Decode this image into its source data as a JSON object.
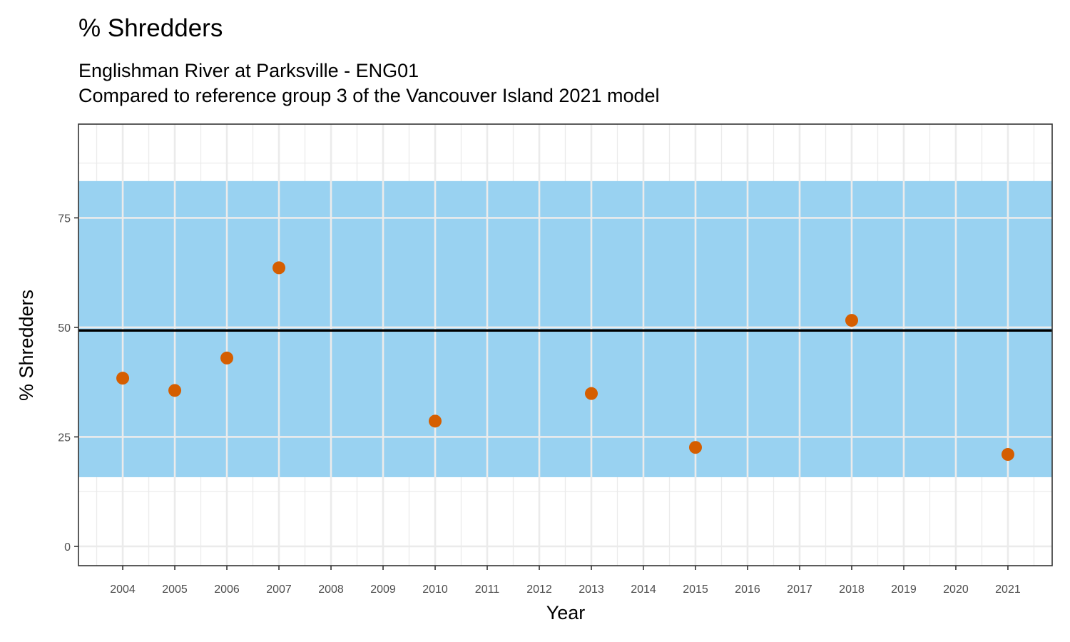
{
  "chart_data": {
    "type": "scatter",
    "title": "% Shredders",
    "subtitle_lines": [
      "Englishman River at Parksville - ENG01",
      "Compared to reference group 3 of the Vancouver Island 2021 model"
    ],
    "xlabel": "Year",
    "ylabel": "% Shredders",
    "x_ticks": [
      2004,
      2005,
      2006,
      2007,
      2008,
      2009,
      2010,
      2011,
      2012,
      2013,
      2014,
      2015,
      2016,
      2017,
      2018,
      2019,
      2020,
      2021
    ],
    "y_ticks": [
      0,
      25,
      50,
      75
    ],
    "xlim": [
      2003.15,
      2021.85
    ],
    "ylim": [
      -4.4,
      96.4
    ],
    "grid": true,
    "reference_band": {
      "low": 15.8,
      "high": 83.4,
      "color": "#99d2f1"
    },
    "reference_line": {
      "value": 49.3,
      "color": "#000000"
    },
    "point_color": "#d55e00",
    "points": [
      {
        "x": 2004,
        "y": 38.4
      },
      {
        "x": 2005,
        "y": 35.6
      },
      {
        "x": 2006,
        "y": 43.0
      },
      {
        "x": 2007,
        "y": 63.6
      },
      {
        "x": 2010,
        "y": 28.6
      },
      {
        "x": 2013,
        "y": 34.9
      },
      {
        "x": 2015,
        "y": 22.6
      },
      {
        "x": 2018,
        "y": 51.6
      },
      {
        "x": 2021,
        "y": 21.0
      }
    ]
  }
}
